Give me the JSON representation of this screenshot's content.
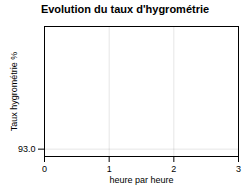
{
  "chart_data": {
    "type": "line",
    "title": "Evolution du taux d'hygrométrie",
    "xlabel": "heure par heure",
    "ylabel": "Taux hygrométrie %",
    "xlim": [
      0,
      3
    ],
    "xticks": [
      0,
      1,
      2,
      3
    ],
    "ylim": [
      92.7,
      98.0
    ],
    "yticks": [
      {
        "value": 93,
        "label": "93.0"
      }
    ],
    "grid": true
  }
}
